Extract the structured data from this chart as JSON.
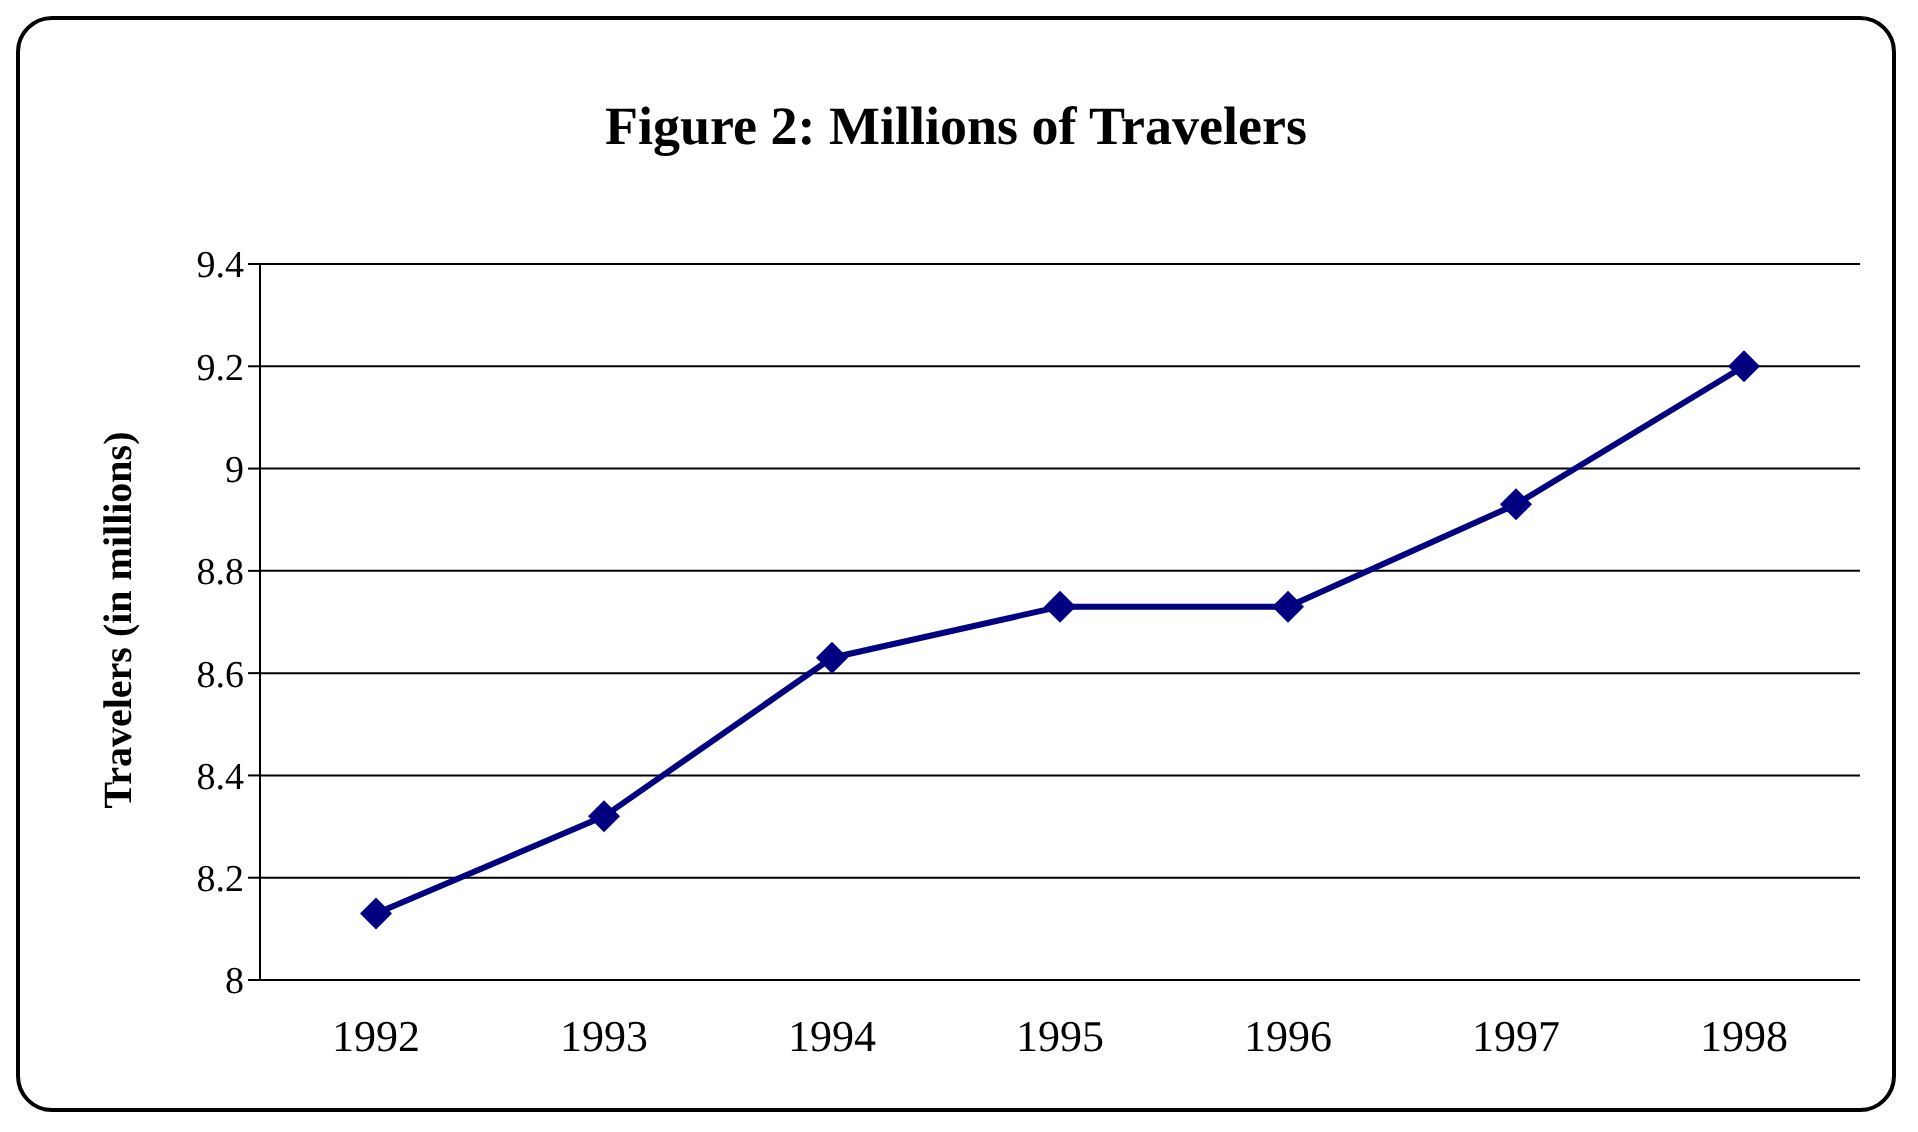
{
  "chart_data": {
    "type": "line",
    "title": "Figure 2: Millions of Travelers",
    "ylabel": "Travelers (in millions)",
    "categories": [
      "1992",
      "1993",
      "1994",
      "1995",
      "1996",
      "1997",
      "1998"
    ],
    "series": [
      {
        "color": "#000080",
        "values": [
          8.13,
          8.32,
          8.63,
          8.73,
          8.73,
          8.93,
          9.2
        ]
      }
    ],
    "ylim": [
      8,
      9.4
    ],
    "yticks": [
      8,
      8.2,
      8.4,
      8.6,
      8.8,
      9,
      9.2,
      9.4
    ],
    "grid": "y",
    "marker": "diamond",
    "line_style": "solid"
  }
}
